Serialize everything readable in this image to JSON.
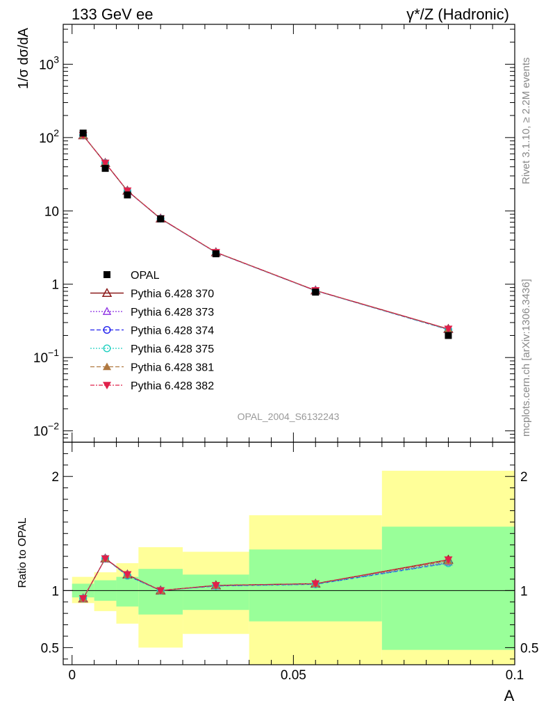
{
  "header": {
    "left": "133 GeV ee",
    "right": "γ*/Z (Hadronic)"
  },
  "side": {
    "rivet": "Rivet 3.1.10, ≥ 2.2M events",
    "mcplots": "mcplots.cern.ch [arXiv:1306.3436]"
  },
  "analysis_tag": "OPAL_2004_S6132243",
  "colors": {
    "opal": "#000000",
    "p370": "#8b1a1a",
    "p373": "#8a2be2",
    "p374": "#2020ee",
    "p375": "#20d0c0",
    "p381": "#b07840",
    "p382": "#e0204a",
    "band_outer": "#ffff99",
    "band_inner": "#99ff99"
  },
  "chart_data": [
    {
      "type": "scatter",
      "panel": "main",
      "ylabel": "1/σ dσ/dA",
      "yscale": "log",
      "ylim": [
        0.007,
        3500
      ],
      "xlim": [
        -0.002,
        0.1
      ],
      "y_ticks": [
        {
          "v": 0.01,
          "base": "10",
          "exp": "−2"
        },
        {
          "v": 0.1,
          "base": "10",
          "exp": "−1"
        },
        {
          "v": 1,
          "base": "1",
          "exp": ""
        },
        {
          "v": 10,
          "base": "10",
          "exp": ""
        },
        {
          "v": 100,
          "base": "10",
          "exp": "2"
        },
        {
          "v": 1000,
          "base": "10",
          "exp": "3"
        }
      ],
      "x": [
        0.0025,
        0.0075,
        0.0125,
        0.02,
        0.0325,
        0.055,
        0.085
      ],
      "opal": {
        "name": "OPAL",
        "values": [
          115,
          38,
          16.5,
          7.8,
          2.6,
          0.78,
          0.2
        ]
      },
      "series": [
        {
          "name": "Pythia 6.428 370",
          "key": "p370",
          "values": [
            107,
            45,
            18.8,
            7.85,
            2.72,
            0.82,
            0.245
          ]
        },
        {
          "name": "Pythia 6.428 373",
          "key": "p373",
          "values": [
            107,
            45,
            18.7,
            7.85,
            2.71,
            0.82,
            0.242
          ]
        },
        {
          "name": "Pythia 6.428 374",
          "key": "p374",
          "values": [
            107,
            45,
            18.7,
            7.8,
            2.7,
            0.815,
            0.24
          ]
        },
        {
          "name": "Pythia 6.428 375",
          "key": "p375",
          "values": [
            107,
            45,
            18.7,
            7.8,
            2.7,
            0.815,
            0.24
          ]
        },
        {
          "name": "Pythia 6.428 381",
          "key": "p381",
          "values": [
            107,
            45,
            18.8,
            7.85,
            2.72,
            0.82,
            0.243
          ]
        },
        {
          "name": "Pythia 6.428 382",
          "key": "p382",
          "values": [
            107,
            45,
            18.8,
            7.85,
            2.72,
            0.82,
            0.245
          ]
        }
      ]
    },
    {
      "type": "line",
      "panel": "ratio",
      "ylabel": "Ratio to OPAL",
      "xlabel": "A",
      "ylim": [
        0.35,
        2.3
      ],
      "xlim": [
        -0.002,
        0.1
      ],
      "x_ticks": [
        {
          "v": 0,
          "label": "0"
        },
        {
          "v": 0.05,
          "label": "0.05"
        },
        {
          "v": 0.1,
          "label": "0.1"
        }
      ],
      "y_ticks": [
        {
          "v": 0.5,
          "label": "0.5"
        },
        {
          "v": 1,
          "label": "1"
        },
        {
          "v": 2,
          "label": "2"
        }
      ],
      "bands": [
        {
          "x0": 0.0,
          "x1": 0.005,
          "outer": [
            0.89,
            1.12
          ],
          "inner": [
            0.94,
            1.06
          ]
        },
        {
          "x0": 0.005,
          "x1": 0.01,
          "outer": [
            0.82,
            1.16
          ],
          "inner": [
            0.91,
            1.09
          ]
        },
        {
          "x0": 0.01,
          "x1": 0.015,
          "outer": [
            0.71,
            1.24
          ],
          "inner": [
            0.86,
            1.12
          ]
        },
        {
          "x0": 0.015,
          "x1": 0.025,
          "outer": [
            0.5,
            1.38
          ],
          "inner": [
            0.79,
            1.19
          ]
        },
        {
          "x0": 0.025,
          "x1": 0.04,
          "outer": [
            0.62,
            1.34
          ],
          "inner": [
            0.83,
            1.14
          ]
        },
        {
          "x0": 0.04,
          "x1": 0.07,
          "outer": [
            0.35,
            1.66
          ],
          "inner": [
            0.73,
            1.36
          ]
        },
        {
          "x0": 0.07,
          "x1": 0.1,
          "outer": [
            0.35,
            2.05
          ],
          "inner": [
            0.48,
            1.56
          ]
        }
      ],
      "x": [
        0.0025,
        0.0075,
        0.0125,
        0.02,
        0.0325,
        0.055,
        0.085
      ],
      "series": [
        {
          "name": "Pythia 6.428 370",
          "key": "p370",
          "values": [
            0.93,
            1.28,
            1.14,
            1.0,
            1.045,
            1.06,
            1.27
          ]
        },
        {
          "name": "Pythia 6.428 373",
          "key": "p373",
          "values": [
            0.93,
            1.28,
            1.14,
            1.0,
            1.04,
            1.06,
            1.25
          ]
        },
        {
          "name": "Pythia 6.428 374",
          "key": "p374",
          "values": [
            0.93,
            1.28,
            1.13,
            1.0,
            1.04,
            1.055,
            1.24
          ]
        },
        {
          "name": "Pythia 6.428 375",
          "key": "p375",
          "values": [
            0.93,
            1.28,
            1.13,
            1.0,
            1.04,
            1.055,
            1.24
          ]
        },
        {
          "name": "Pythia 6.428 381",
          "key": "p381",
          "values": [
            0.93,
            1.28,
            1.14,
            1.0,
            1.045,
            1.06,
            1.26
          ]
        },
        {
          "name": "Pythia 6.428 382",
          "key": "p382",
          "values": [
            0.93,
            1.28,
            1.14,
            1.0,
            1.045,
            1.06,
            1.27
          ]
        }
      ]
    }
  ]
}
